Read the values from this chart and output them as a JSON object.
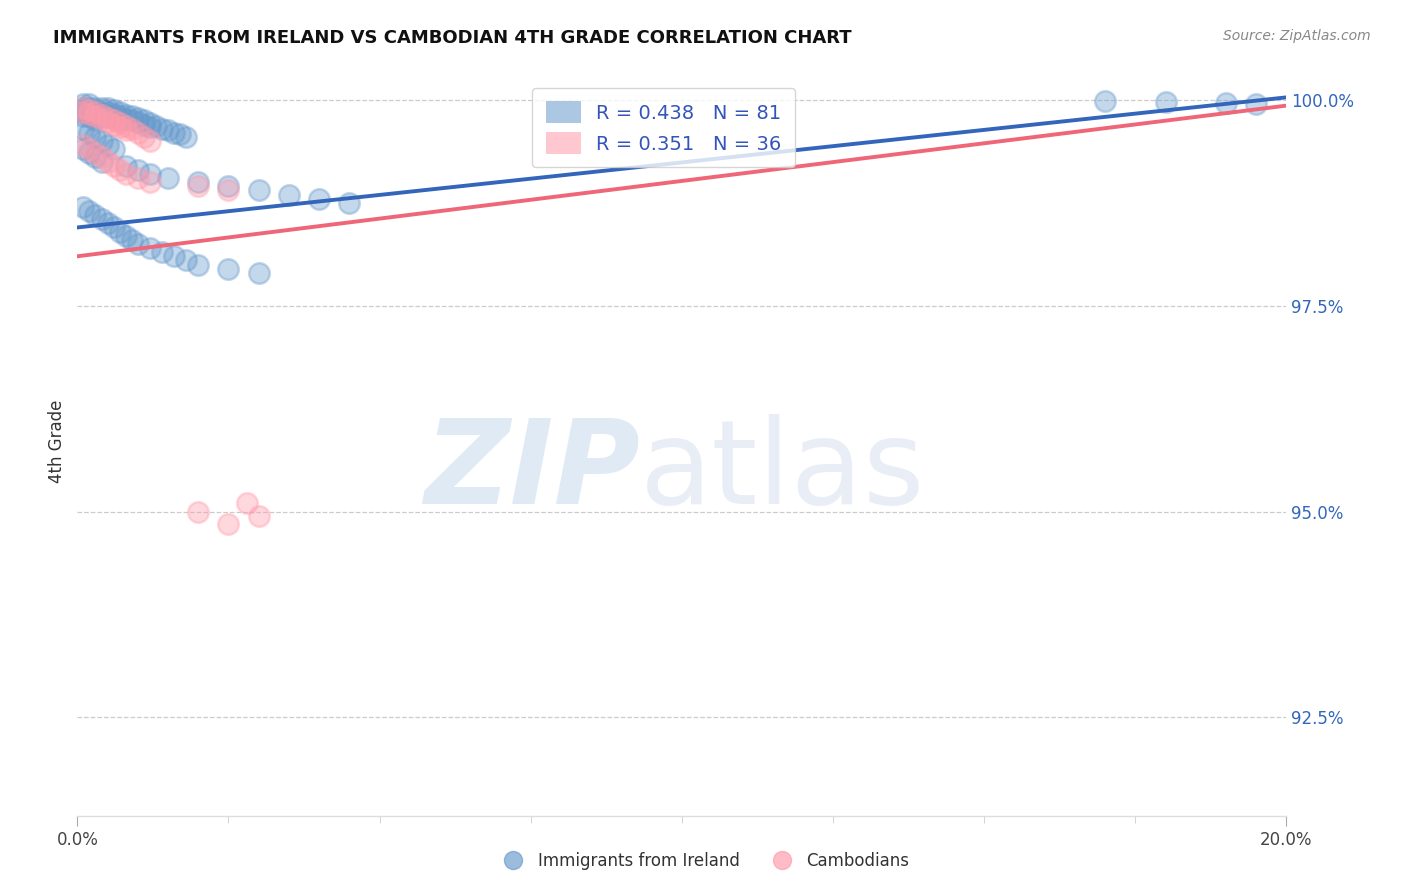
{
  "title": "IMMIGRANTS FROM IRELAND VS CAMBODIAN 4TH GRADE CORRELATION CHART",
  "source": "Source: ZipAtlas.com",
  "ylabel": "4th Grade",
  "yaxis_labels": [
    "100.0%",
    "97.5%",
    "95.0%",
    "92.5%"
  ],
  "yaxis_values": [
    1.0,
    0.975,
    0.95,
    0.925
  ],
  "xmin": 0.0,
  "xmax": 0.2,
  "ymin": 0.913,
  "ymax": 1.004,
  "ireland_R": 0.438,
  "ireland_N": 81,
  "cambodian_R": 0.351,
  "cambodian_N": 36,
  "ireland_color": "#6699cc",
  "cambodian_color": "#ff99aa",
  "ireland_line_color": "#3366bb",
  "cambodian_line_color": "#ee6677",
  "background_color": "#ffffff",
  "grid_color": "#cccccc",
  "title_fontsize": 13,
  "axis_fontsize": 12,
  "ireland_x": [
    0.001,
    0.001,
    0.001,
    0.001,
    0.002,
    0.002,
    0.002,
    0.002,
    0.003,
    0.003,
    0.003,
    0.003,
    0.004,
    0.004,
    0.004,
    0.005,
    0.005,
    0.005,
    0.006,
    0.006,
    0.006,
    0.007,
    0.007,
    0.007,
    0.008,
    0.008,
    0.009,
    0.009,
    0.01,
    0.01,
    0.011,
    0.011,
    0.012,
    0.012,
    0.013,
    0.014,
    0.015,
    0.016,
    0.017,
    0.018,
    0.001,
    0.002,
    0.003,
    0.004,
    0.005,
    0.006,
    0.001,
    0.002,
    0.003,
    0.004,
    0.008,
    0.01,
    0.012,
    0.015,
    0.02,
    0.025,
    0.03,
    0.035,
    0.04,
    0.045,
    0.001,
    0.002,
    0.003,
    0.004,
    0.005,
    0.006,
    0.007,
    0.008,
    0.009,
    0.01,
    0.012,
    0.014,
    0.016,
    0.018,
    0.02,
    0.025,
    0.03,
    0.17,
    0.18,
    0.19,
    0.195
  ],
  "ireland_y": [
    0.9995,
    0.999,
    0.9985,
    0.998,
    0.9995,
    0.999,
    0.9985,
    0.998,
    0.999,
    0.9985,
    0.998,
    0.9975,
    0.999,
    0.9985,
    0.998,
    0.999,
    0.9985,
    0.998,
    0.9988,
    0.9983,
    0.9978,
    0.9985,
    0.998,
    0.9975,
    0.9982,
    0.9977,
    0.998,
    0.9975,
    0.9978,
    0.9973,
    0.9975,
    0.997,
    0.9972,
    0.9967,
    0.9968,
    0.9965,
    0.9963,
    0.996,
    0.9958,
    0.9955,
    0.9965,
    0.996,
    0.9955,
    0.995,
    0.9945,
    0.994,
    0.994,
    0.9935,
    0.993,
    0.9925,
    0.992,
    0.9915,
    0.991,
    0.9905,
    0.99,
    0.9895,
    0.989,
    0.9885,
    0.988,
    0.9875,
    0.987,
    0.9865,
    0.986,
    0.9855,
    0.985,
    0.9845,
    0.984,
    0.9835,
    0.983,
    0.9825,
    0.982,
    0.9815,
    0.981,
    0.9805,
    0.98,
    0.9795,
    0.979,
    0.9998,
    0.9997,
    0.9996,
    0.9995
  ],
  "cambodian_x": [
    0.001,
    0.001,
    0.002,
    0.002,
    0.003,
    0.003,
    0.004,
    0.004,
    0.005,
    0.005,
    0.006,
    0.006,
    0.007,
    0.007,
    0.008,
    0.008,
    0.009,
    0.01,
    0.011,
    0.012,
    0.001,
    0.002,
    0.003,
    0.004,
    0.005,
    0.006,
    0.007,
    0.008,
    0.01,
    0.012,
    0.02,
    0.025,
    0.02,
    0.025,
    0.028,
    0.03
  ],
  "cambodian_y": [
    0.999,
    0.9985,
    0.9988,
    0.9983,
    0.9985,
    0.998,
    0.9982,
    0.9977,
    0.9978,
    0.9973,
    0.9975,
    0.997,
    0.9972,
    0.9967,
    0.9968,
    0.9963,
    0.9965,
    0.996,
    0.9955,
    0.995,
    0.9945,
    0.994,
    0.9935,
    0.993,
    0.9925,
    0.992,
    0.9915,
    0.991,
    0.9905,
    0.99,
    0.9895,
    0.989,
    0.95,
    0.9485,
    0.951,
    0.9495
  ]
}
